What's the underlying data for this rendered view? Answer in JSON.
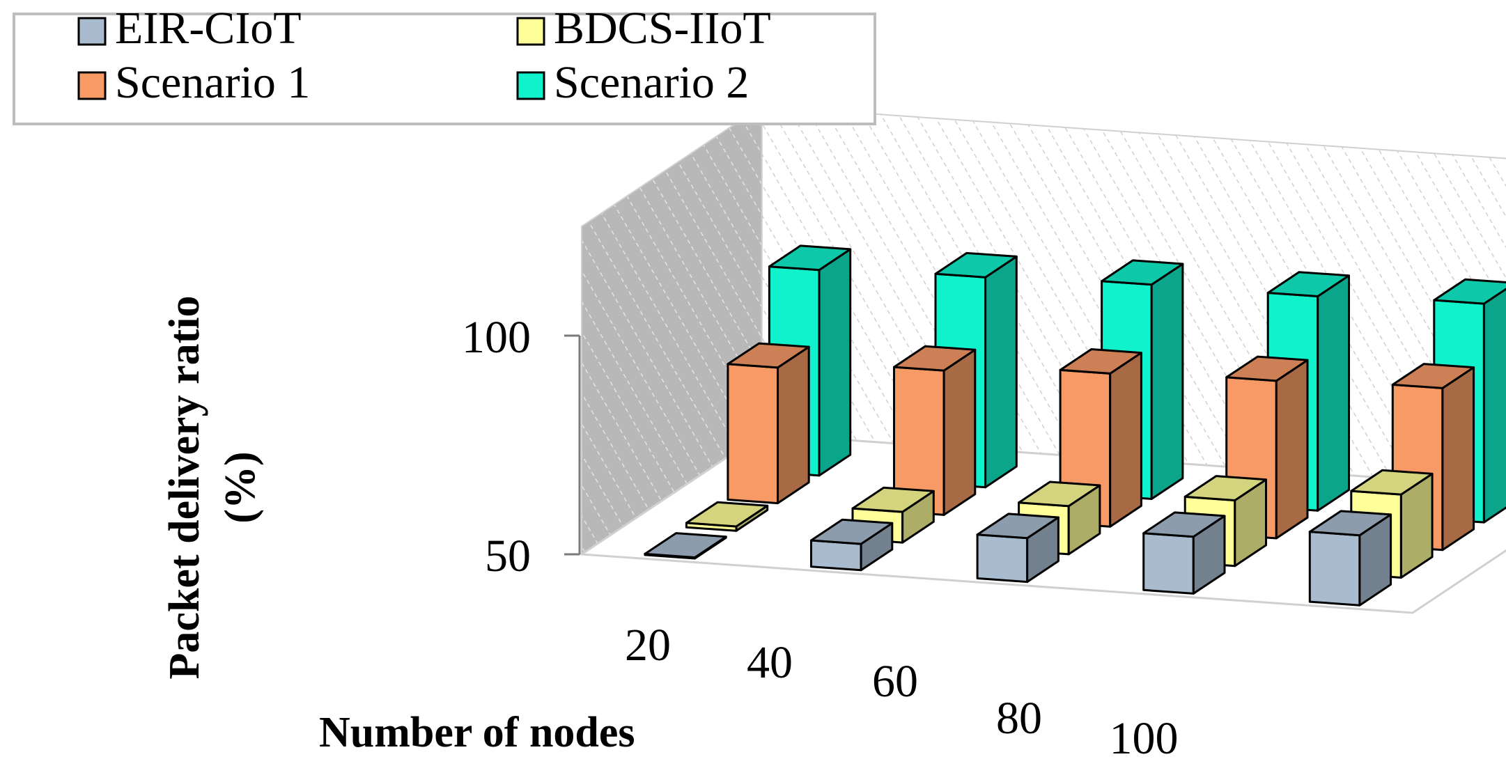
{
  "chart_data": {
    "type": "bar",
    "subtype": "3d-clustered-bar",
    "categories": [
      "20",
      "40",
      "60",
      "80",
      "100"
    ],
    "series": [
      {
        "name": "EIR-CIoT",
        "values": [
          50,
          56,
          60,
          63,
          66
        ]
      },
      {
        "name": "BDCS-IIoT",
        "values": [
          51,
          57,
          61,
          65,
          69
        ]
      },
      {
        "name": "Scenario 1",
        "values": [
          81,
          83,
          85,
          86,
          87
        ]
      },
      {
        "name": "Scenario 2",
        "values": [
          97,
          98,
          99,
          99,
          100
        ]
      }
    ],
    "title": "",
    "xlabel": "Number of nodes",
    "ylabel": "Packet delivery ratio (%)",
    "ylabel_lines": [
      "Packet delivery ratio",
      "(%)"
    ],
    "yticks": [
      "50",
      "100"
    ],
    "ylim": [
      50,
      125
    ],
    "legend": {
      "placement": "top-left",
      "columns": 2
    },
    "colors": {
      "EIR-CIoT": "#a9bccf",
      "BDCS-IIoT": "#ffff99",
      "Scenario 1": "#f79a66",
      "Scenario 2": "#10f2cc"
    }
  }
}
